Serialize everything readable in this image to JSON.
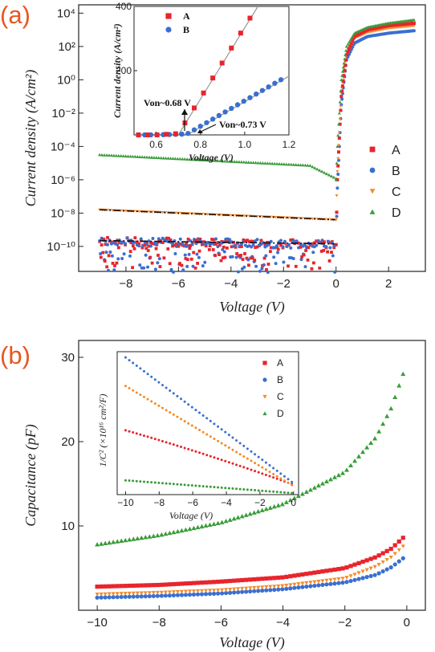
{
  "panels": {
    "a": {
      "label": "(a)"
    },
    "b": {
      "label": "(b)"
    }
  },
  "colors": {
    "A": "#e8242c",
    "B": "#3a6fd0",
    "C": "#f58a2a",
    "D": "#3a9c3a",
    "fit": "#111111"
  },
  "chart_data": [
    {
      "id": "a-main",
      "type": "scatter",
      "title": "",
      "xlabel": "Voltage (V)",
      "ylabel": "Current density (A/cm²)",
      "xlim": [
        -9.8,
        3.4
      ],
      "ylim_log10": [
        -11.5,
        4.5
      ],
      "y_scale": "log",
      "x_ticks": [
        -8,
        -6,
        -4,
        -2,
        0,
        2
      ],
      "y_ticks": [
        "10⁴",
        "10²",
        "10⁰",
        "10⁻²",
        "10⁻⁴",
        "10⁻⁶",
        "10⁻⁸",
        "10⁻¹⁰"
      ],
      "legend": {
        "position": "right",
        "entries": [
          "A",
          "B",
          "C",
          "D"
        ]
      },
      "series": [
        {
          "name": "A",
          "marker": "square",
          "log_current_density": {
            "at_-9V": -9.7,
            "at_0V": -9.9,
            "at_0.5V": 1.5,
            "at_3V": 3.4
          }
        },
        {
          "name": "B",
          "marker": "circle",
          "log_current_density": {
            "at_-9V": -9.7,
            "at_0V": -9.9,
            "at_0.5V": 1.2,
            "at_3V": 2.9
          }
        },
        {
          "name": "C",
          "marker": "triangle-down",
          "log_current_density": {
            "at_-9V": -7.8,
            "at_0V": -8.4,
            "at_0.5V": 1.7,
            "at_3V": 3.2
          }
        },
        {
          "name": "D",
          "marker": "triangle-up",
          "log_current_density": {
            "at_-9V": -4.5,
            "at_-1V": -5.2,
            "at_0V": -6.0,
            "at_0.5V": 2.0,
            "at_3V": 3.6
          }
        }
      ]
    },
    {
      "id": "a-inset",
      "type": "scatter",
      "xlabel": "Voltage (V)",
      "ylabel": "Current density (A/cm²)",
      "xlim": [
        0.5,
        1.2
      ],
      "ylim": [
        0,
        400
      ],
      "x_ticks": [
        0.6,
        0.8,
        1.0,
        1.2
      ],
      "y_ticks": [
        200,
        400
      ],
      "legend": {
        "position": "top-left",
        "entries": [
          "A",
          "B"
        ]
      },
      "annotations": [
        "Von~0.68 V",
        "Von~0.73 V"
      ],
      "series": [
        {
          "name": "A",
          "x": [
            0.6,
            0.65,
            0.7,
            0.75,
            0.8,
            0.85,
            0.9,
            0.95,
            1.0,
            1.05
          ],
          "y": [
            0,
            2,
            8,
            30,
            90,
            155,
            215,
            275,
            335,
            395
          ]
        },
        {
          "name": "B",
          "x": [
            0.6,
            0.65,
            0.7,
            0.75,
            0.8,
            0.85,
            0.9,
            0.95,
            1.0,
            1.05,
            1.1,
            1.15
          ],
          "y": [
            0,
            1,
            5,
            15,
            35,
            55,
            75,
            95,
            115,
            135,
            155,
            175
          ]
        }
      ]
    },
    {
      "id": "b-main",
      "type": "scatter",
      "title": "",
      "xlabel": "Voltage (V)",
      "ylabel": "Capacitance (pF)",
      "xlim": [
        -10.6,
        0.6
      ],
      "ylim": [
        0,
        32
      ],
      "x_ticks": [
        -10,
        -8,
        -6,
        -4,
        -2,
        0
      ],
      "y_ticks": [
        10,
        20,
        30
      ],
      "series": [
        {
          "name": "A",
          "marker": "square",
          "x": [
            -10,
            -8,
            -6,
            -4,
            -2,
            -1,
            -0.5,
            0
          ],
          "y": [
            2.8,
            3.0,
            3.4,
            3.9,
            5.0,
            6.3,
            7.3,
            9.0
          ]
        },
        {
          "name": "B",
          "marker": "circle",
          "x": [
            -10,
            -8,
            -6,
            -4,
            -2,
            -1,
            -0.5,
            0
          ],
          "y": [
            1.5,
            1.7,
            2.0,
            2.5,
            3.3,
            4.2,
            5.1,
            6.5
          ]
        },
        {
          "name": "C",
          "marker": "triangle-down",
          "x": [
            -10,
            -8,
            -6,
            -4,
            -2,
            -1,
            -0.5,
            0
          ],
          "y": [
            1.9,
            2.1,
            2.4,
            2.9,
            3.8,
            5.2,
            6.3,
            8.0
          ]
        },
        {
          "name": "D",
          "marker": "triangle-up",
          "x": [
            -10,
            -8,
            -6,
            -4,
            -2,
            -1,
            -0.5,
            0
          ],
          "y": [
            7.8,
            8.9,
            10.4,
            12.6,
            16.4,
            20.5,
            24.0,
            29.3
          ]
        }
      ]
    },
    {
      "id": "b-inset",
      "type": "scatter",
      "xlabel": "Voltage (V)",
      "ylabel": "1/C² (×10¹⁶ cm²/F)",
      "xlim": [
        -10.5,
        0.3
      ],
      "ylim": [
        0,
        1
      ],
      "x_ticks": [
        -10,
        -8,
        -6,
        -4,
        -2,
        0
      ],
      "legend": {
        "position": "right",
        "entries": [
          "A",
          "B",
          "C",
          "D"
        ]
      },
      "series": [
        {
          "name": "A",
          "x": [
            -10,
            0
          ],
          "y_relative": [
            0.45,
            0.04
          ]
        },
        {
          "name": "B",
          "x": [
            -10,
            0
          ],
          "y_relative": [
            0.96,
            0.08
          ]
        },
        {
          "name": "C",
          "x": [
            -10,
            0
          ],
          "y_relative": [
            0.76,
            0.06
          ]
        },
        {
          "name": "D",
          "x": [
            -10,
            0
          ],
          "y_relative": [
            0.1,
            0.01
          ]
        }
      ]
    }
  ]
}
